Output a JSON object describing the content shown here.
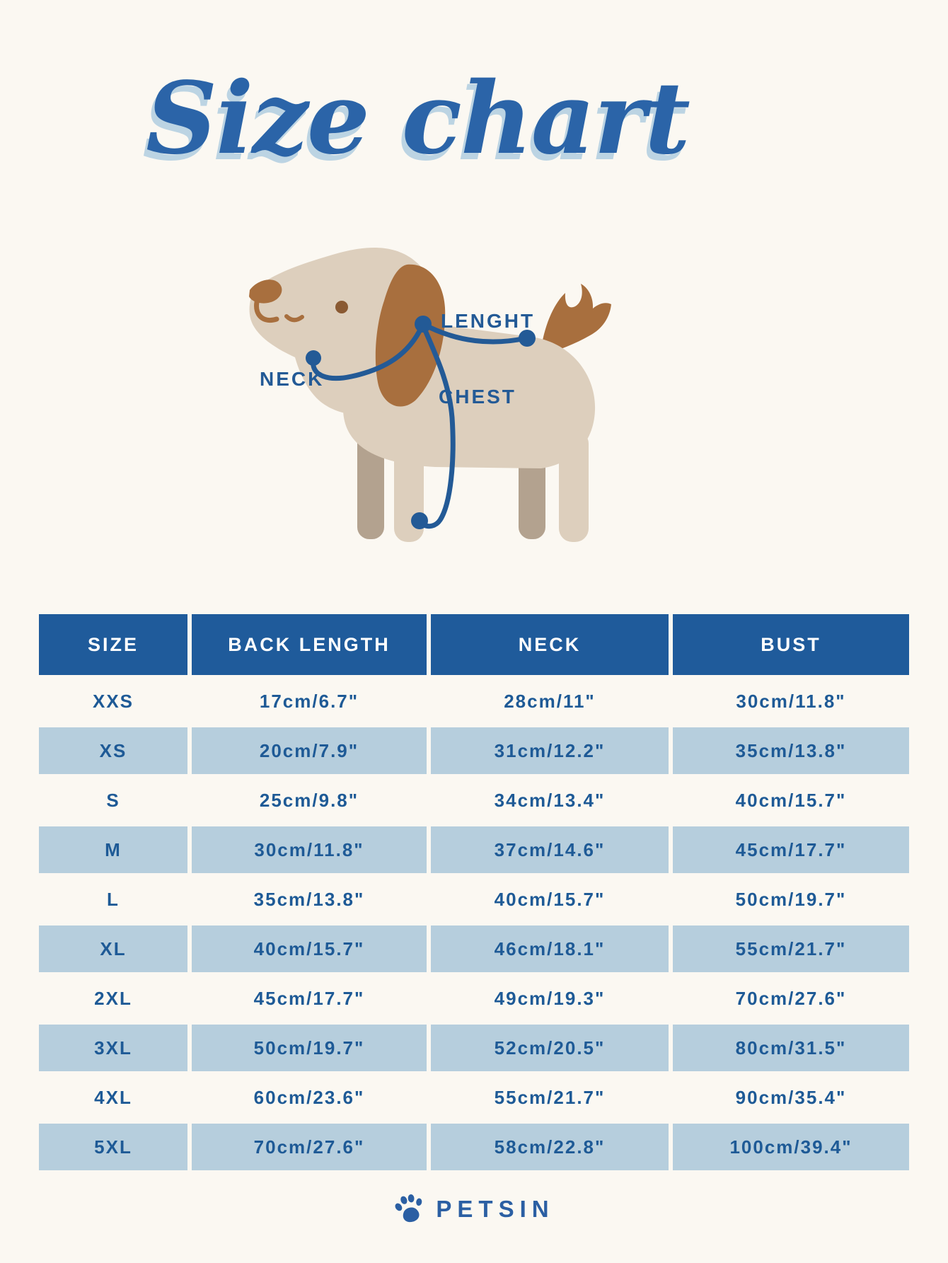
{
  "page": {
    "background_color": "#fbf8f2"
  },
  "title": {
    "text": "Size chart",
    "color": "#2b64a8",
    "shadow_color": "#bcd4e3"
  },
  "diagram": {
    "length_label": "LENGHT",
    "neck_label": "NECK",
    "chest_label": "CHEST",
    "label_color": "#235a96",
    "dog": {
      "body_color": "#ddcfbd",
      "far_leg_color": "#b3a28f",
      "brown_color": "#a86f3e",
      "eye_color": "#8a5a33",
      "measure_line_color": "#235a96"
    }
  },
  "table": {
    "columns": [
      "SIZE",
      "BACK LENGTH",
      "NECK",
      "BUST"
    ],
    "rows": [
      [
        "XXS",
        "17cm/6.7\"",
        "28cm/11\"",
        "30cm/11.8\""
      ],
      [
        "XS",
        "20cm/7.9\"",
        "31cm/12.2\"",
        "35cm/13.8\""
      ],
      [
        "S",
        "25cm/9.8\"",
        "34cm/13.4\"",
        "40cm/15.7\""
      ],
      [
        "M",
        "30cm/11.8\"",
        "37cm/14.6\"",
        "45cm/17.7\""
      ],
      [
        "L",
        "35cm/13.8\"",
        "40cm/15.7\"",
        "50cm/19.7\""
      ],
      [
        "XL",
        "40cm/15.7\"",
        "46cm/18.1\"",
        "55cm/21.7\""
      ],
      [
        "2XL",
        "45cm/17.7\"",
        "49cm/19.3\"",
        "70cm/27.6\""
      ],
      [
        "3XL",
        "50cm/19.7\"",
        "52cm/20.5\"",
        "80cm/31.5\""
      ],
      [
        "4XL",
        "60cm/23.6\"",
        "55cm/21.7\"",
        "90cm/35.4\""
      ],
      [
        "5XL",
        "70cm/27.6\"",
        "58cm/22.8\"",
        "100cm/39.4\""
      ]
    ],
    "header_bg_color": "#1f5b9b",
    "header_text_color": "#ffffff",
    "alt_row_color": "#b6cedd",
    "cell_text_color": "#1e5a96"
  },
  "footer": {
    "brand": "PETSIN",
    "brand_color": "#2b5fa3"
  }
}
